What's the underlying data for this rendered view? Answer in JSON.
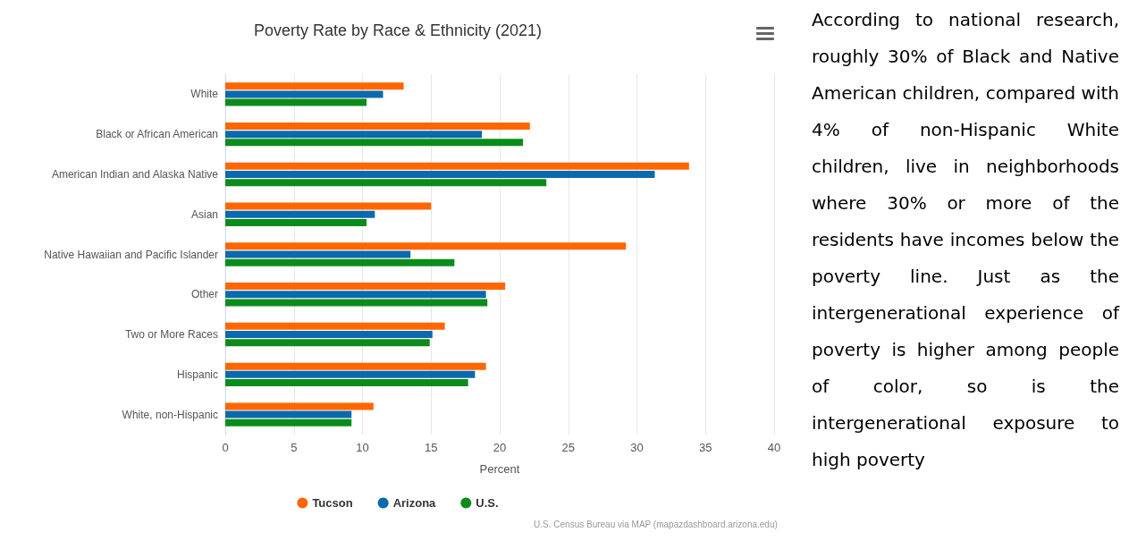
{
  "chart_data": {
    "type": "bar",
    "orientation": "horizontal",
    "title": "Poverty Rate by Race & Ethnicity (2021)",
    "xlabel": "Percent",
    "categories": [
      "White",
      "Black or African American",
      "American Indian and Alaska Native",
      "Asian",
      "Native Hawaiian and Pacific Islander",
      "Other",
      "Two or More Races",
      "Hispanic",
      "White, non-Hispanic"
    ],
    "series": [
      {
        "name": "Tucson",
        "color": "#ff6600",
        "values": [
          13.0,
          22.2,
          33.8,
          15.0,
          29.2,
          20.4,
          16.0,
          19.0,
          10.8
        ]
      },
      {
        "name": "Arizona",
        "color": "#0a6aad",
        "values": [
          11.5,
          18.7,
          31.3,
          10.9,
          13.5,
          19.0,
          15.1,
          18.2,
          9.2
        ]
      },
      {
        "name": "U.S.",
        "color": "#0a8c1a",
        "values": [
          10.3,
          21.7,
          23.4,
          10.3,
          16.7,
          19.1,
          14.9,
          17.7,
          9.2
        ]
      }
    ],
    "xlim": [
      0,
      40
    ],
    "xticks": [
      0,
      5,
      10,
      15,
      20,
      25,
      30,
      35,
      40
    ],
    "grid": "x",
    "legend": "bottom",
    "annotations": [
      "U.S. Census Bureau via MAP (mapazdashboard.arizona.edu)",
      "According to national research, roughly 30% of Black and Native American children, compared with 4% of non-Hispanic White children, live in neighborhoods where 30% or more of the residents have incomes below the poverty line. Just as the intergenerational experience of poverty is higher among people of color, so is the intergenerational exposure to high poverty"
    ]
  }
}
